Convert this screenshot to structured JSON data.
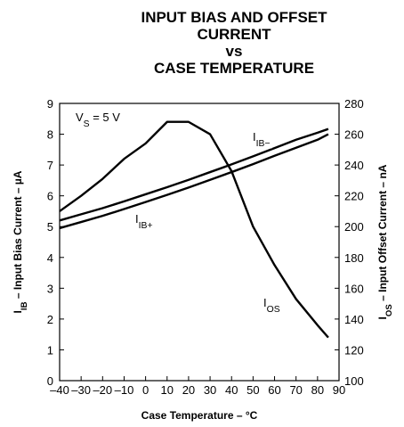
{
  "chart_data": {
    "type": "line",
    "title": [
      "INPUT BIAS AND OFFSET",
      "CURRENT",
      "vs",
      "CASE TEMPERATURE"
    ],
    "xlabel": "Case Temperature – °C",
    "ylabel": {
      "main": "I",
      "sub": "IB",
      "rest": " – Input Bias Current – µA"
    },
    "y2label": {
      "main": "I",
      "sub": "OS",
      "rest": " – Input Offset Current – nA"
    },
    "annotations": [
      {
        "main": "V",
        "sub": "S",
        "rest": " = 5 V"
      },
      {
        "main": "I",
        "sub": "IB−"
      },
      {
        "main": "I",
        "sub": "IB+"
      },
      {
        "main": "I",
        "sub": "OS"
      }
    ],
    "x": [
      -40,
      -30,
      -20,
      -10,
      0,
      10,
      20,
      30,
      40,
      50,
      60,
      70,
      80,
      85
    ],
    "series": [
      {
        "name": "IIB−",
        "color": "#000000",
        "values": [
          5.2,
          5.4,
          5.6,
          5.82,
          6.05,
          6.28,
          6.52,
          6.77,
          7.02,
          7.28,
          7.55,
          7.82,
          8.05,
          8.17
        ]
      },
      {
        "name": "IIB+",
        "color": "#000000",
        "values": [
          4.95,
          5.15,
          5.35,
          5.57,
          5.8,
          6.03,
          6.27,
          6.52,
          6.77,
          7.03,
          7.3,
          7.56,
          7.82,
          8.0
        ]
      },
      {
        "name": "IOS",
        "color": "#000000",
        "axis": "y2",
        "values": [
          210,
          220,
          231,
          244,
          254,
          268,
          268,
          260,
          236,
          200,
          175,
          153,
          136,
          128
        ]
      }
    ],
    "xlim": [
      -40,
      90
    ],
    "xticks": [
      {
        "value": -40,
        "label": "–40"
      },
      {
        "value": -30,
        "label": "–30"
      },
      {
        "value": -20,
        "label": "–20"
      },
      {
        "value": -10,
        "label": "–10"
      },
      0,
      10,
      20,
      30,
      40,
      50,
      60,
      70,
      80,
      90
    ],
    "ylim": [
      0,
      9
    ],
    "yticks": [
      0,
      1,
      2,
      3,
      4,
      5,
      6,
      7,
      8,
      9
    ],
    "y2lim": [
      100,
      280
    ],
    "y2ticks": [
      100,
      120,
      140,
      160,
      180,
      200,
      220,
      240,
      260,
      280
    ],
    "grid": false
  }
}
